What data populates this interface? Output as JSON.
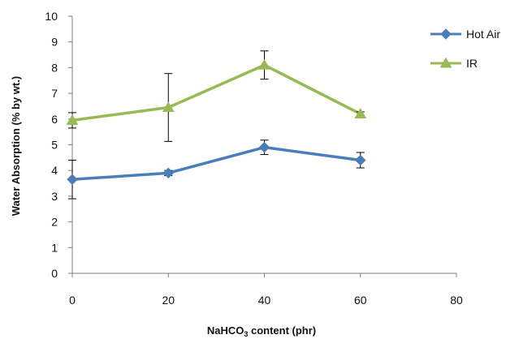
{
  "chart_data": {
    "type": "line",
    "title": "",
    "xlabel_prefix": "NaHCO",
    "xlabel_sub": "3",
    "xlabel_suffix": " content (phr)",
    "ylabel": "Water Absorption (% by wt.)",
    "xlim": [
      0,
      80
    ],
    "ylim": [
      0,
      10
    ],
    "xticks": [
      "0",
      "20",
      "40",
      "60",
      "80"
    ],
    "yticks": [
      "0",
      "1",
      "2",
      "3",
      "4",
      "5",
      "6",
      "7",
      "8",
      "9",
      "10"
    ],
    "grid": false,
    "legend_placement": "top-right",
    "x": [
      0,
      20,
      40,
      60
    ],
    "series": [
      {
        "name": "Hot Air",
        "color": "#4a7ebb",
        "marker": "diamond",
        "values": [
          3.65,
          3.9,
          4.9,
          4.4
        ],
        "error": [
          0.75,
          0.1,
          0.28,
          0.3
        ]
      },
      {
        "name": "IR",
        "color": "#98b954",
        "marker": "triangle",
        "values": [
          5.95,
          6.45,
          8.1,
          6.2
        ],
        "error": [
          0.3,
          1.32,
          0.55,
          0.08
        ]
      }
    ]
  }
}
